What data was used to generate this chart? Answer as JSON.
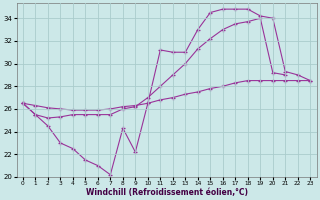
{
  "xlabel": "Windchill (Refroidissement éolien,°C)",
  "background_color": "#cce8e8",
  "grid_color": "#aacccc",
  "line_color": "#993399",
  "xlim": [
    -0.5,
    23.5
  ],
  "ylim": [
    20,
    35
  ],
  "yticks": [
    20,
    22,
    24,
    26,
    28,
    30,
    32,
    34
  ],
  "xticks": [
    0,
    1,
    2,
    3,
    4,
    5,
    6,
    7,
    8,
    9,
    10,
    11,
    12,
    13,
    14,
    15,
    16,
    17,
    18,
    19,
    20,
    21,
    22,
    23
  ],
  "line1_y": [
    26.5,
    25.5,
    24.5,
    23.0,
    22.5,
    21.5,
    21.0,
    20.2,
    24.3,
    22.2,
    26.5,
    31.2,
    31.0,
    31.0,
    33.0,
    34.5,
    34.8,
    34.8,
    34.8,
    34.2,
    34.0,
    29.3,
    29.0,
    28.5
  ],
  "line2_y": [
    26.5,
    25.5,
    25.2,
    25.3,
    25.5,
    25.5,
    25.5,
    25.5,
    26.0,
    26.2,
    27.0,
    28.0,
    29.0,
    30.0,
    31.3,
    32.2,
    33.0,
    33.5,
    33.7,
    34.0,
    29.2,
    29.0,
    null,
    null
  ],
  "line3_y": [
    26.5,
    26.3,
    26.1,
    26.0,
    25.9,
    25.9,
    25.9,
    26.0,
    26.2,
    26.3,
    26.5,
    26.8,
    27.0,
    27.3,
    27.5,
    27.8,
    28.0,
    28.3,
    28.5,
    28.5,
    28.5,
    28.5,
    28.5,
    28.5
  ]
}
